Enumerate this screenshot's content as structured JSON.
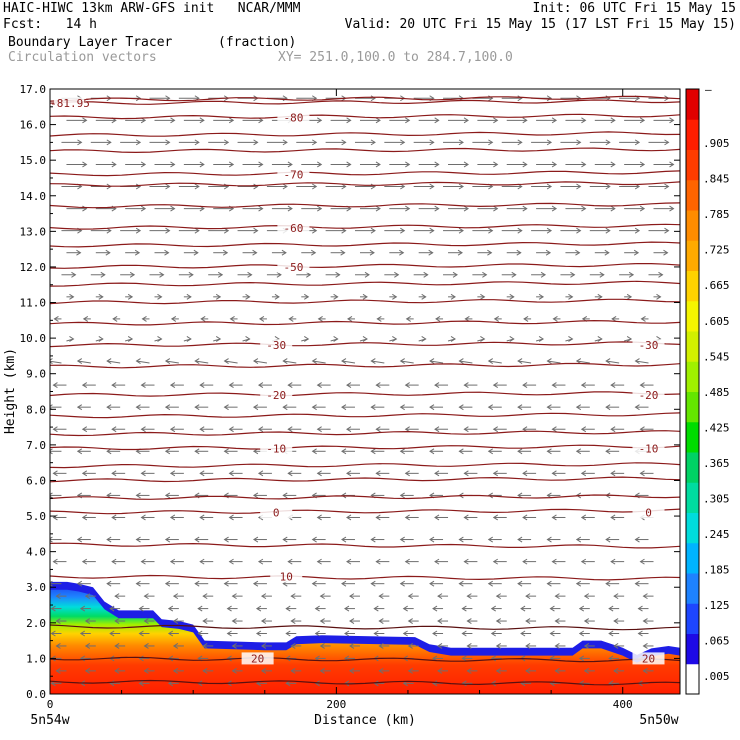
{
  "header": {
    "line1_left": "HAIC-HIWC 13km ARW-GFS init   NCAR/MMM",
    "line1_right": "Init: 06 UTC Fri 15 May 15",
    "line2_left": "Fcst:   14 h",
    "line2_right": "Valid: 20 UTC Fri 15 May 15 (17 LST Fri 15 May 15)",
    "field_name": "Boundary Layer Tracer",
    "field_units": "(fraction)",
    "vector_name": "Circulation vectors",
    "cross_section": "XY= 251.0,100.0 to 284.7,100.0"
  },
  "chart_data": {
    "type": "heatmap",
    "title": "Boundary Layer Tracer",
    "xlabel": "Distance (km)",
    "ylabel": "Height (km)",
    "xlim": [
      0,
      440
    ],
    "ylim": [
      0,
      17
    ],
    "x_ticks": [
      {
        "value": 0,
        "label": "0"
      },
      {
        "value": 200,
        "label": "200"
      },
      {
        "value": 400,
        "label": "400"
      }
    ],
    "x_end_labels": {
      "left": "5n54w",
      "right": "5n50w"
    },
    "y_ticks": [
      {
        "value": 0,
        "label": "0.0"
      },
      {
        "value": 1,
        "label": "1.0"
      },
      {
        "value": 2,
        "label": "2.0"
      },
      {
        "value": 3,
        "label": "3.0"
      },
      {
        "value": 4,
        "label": "4.0"
      },
      {
        "value": 5,
        "label": "5.0"
      },
      {
        "value": 6,
        "label": "6.0"
      },
      {
        "value": 7,
        "label": "7.0"
      },
      {
        "value": 8,
        "label": "8.0"
      },
      {
        "value": 9,
        "label": "9.0"
      },
      {
        "value": 10,
        "label": "10.0"
      },
      {
        "value": 11,
        "label": "11.0"
      },
      {
        "value": 12,
        "label": "12.0"
      },
      {
        "value": 13,
        "label": "13.0"
      },
      {
        "value": 14,
        "label": "14.0"
      },
      {
        "value": 15,
        "label": "15.0"
      },
      {
        "value": 16,
        "label": "16.0"
      },
      {
        "value": 17,
        "label": "17.0"
      }
    ],
    "colorbar": {
      "colors": [
        "#ffffff",
        "#1e0ae6",
        "#1e46ff",
        "#1e82ff",
        "#00b4ff",
        "#00dcdc",
        "#00dca0",
        "#00d264",
        "#00dc00",
        "#64e600",
        "#a0f000",
        "#d2f000",
        "#f5f500",
        "#ffd200",
        "#ffaa00",
        "#ff8c00",
        "#ff6400",
        "#ff3c00",
        "#ff1e00",
        "#e10000"
      ],
      "labels": [
        ".005",
        ".065",
        ".125",
        ".185",
        ".245",
        ".305",
        ".365",
        ".425",
        ".485",
        ".545",
        ".605",
        ".665",
        ".725",
        ".785",
        ".845",
        ".905"
      ],
      "top_label": "–"
    },
    "tracer_top_km": [
      [
        0,
        3.15
      ],
      [
        12,
        3.15
      ],
      [
        20,
        3.1
      ],
      [
        30,
        3.0
      ],
      [
        38,
        2.6
      ],
      [
        48,
        2.35
      ],
      [
        72,
        2.35
      ],
      [
        78,
        2.1
      ],
      [
        90,
        2.05
      ],
      [
        100,
        1.95
      ],
      [
        108,
        1.5
      ],
      [
        150,
        1.45
      ],
      [
        165,
        1.45
      ],
      [
        172,
        1.62
      ],
      [
        190,
        1.65
      ],
      [
        255,
        1.6
      ],
      [
        265,
        1.4
      ],
      [
        280,
        1.3
      ],
      [
        365,
        1.3
      ],
      [
        372,
        1.5
      ],
      [
        385,
        1.5
      ],
      [
        400,
        1.3
      ],
      [
        410,
        1.1
      ],
      [
        420,
        1.28
      ],
      [
        432,
        1.35
      ],
      [
        440,
        1.3
      ]
    ],
    "contour_lines": [
      {
        "label": "-81.95",
        "label_x": 14,
        "height_km": 16.6
      },
      {
        "label": "-80",
        "label_x": 170,
        "height_km": 16.2
      },
      {
        "label": "-70",
        "label_x": 170,
        "height_km": 14.6
      },
      {
        "label": "-60",
        "label_x": 170,
        "height_km": 13.1
      },
      {
        "label": "-50",
        "label_x": 170,
        "height_km": 12.0
      },
      {
        "label": "-30",
        "label_x": 158,
        "height_km": 9.8
      },
      {
        "label": "-30",
        "label_x": 418,
        "height_km": 9.8
      },
      {
        "label": "-20",
        "label_x": 158,
        "height_km": 8.4
      },
      {
        "label": "-20",
        "label_x": 418,
        "height_km": 8.4
      },
      {
        "label": "-10",
        "label_x": 158,
        "height_km": 6.9
      },
      {
        "label": "-10",
        "label_x": 418,
        "height_km": 6.9
      },
      {
        "label": "0",
        "label_x": 158,
        "height_km": 5.1
      },
      {
        "label": "0",
        "label_x": 418,
        "height_km": 5.1
      },
      {
        "label": "10",
        "label_x": 165,
        "height_km": 3.3
      },
      {
        "label": "20",
        "label_x": 145,
        "height_km": 1.0
      },
      {
        "label": "20",
        "label_x": 418,
        "height_km": 1.0
      }
    ],
    "extra_contour_heights_km": [
      16.7,
      15.7,
      15.25,
      14.3,
      13.7,
      12.6,
      11.5,
      11.0,
      10.4,
      9.2,
      7.8,
      7.3,
      6.4,
      6.0,
      5.5,
      4.2,
      1.9,
      0.35
    ],
    "grid": false,
    "legend": "colorbar right"
  }
}
